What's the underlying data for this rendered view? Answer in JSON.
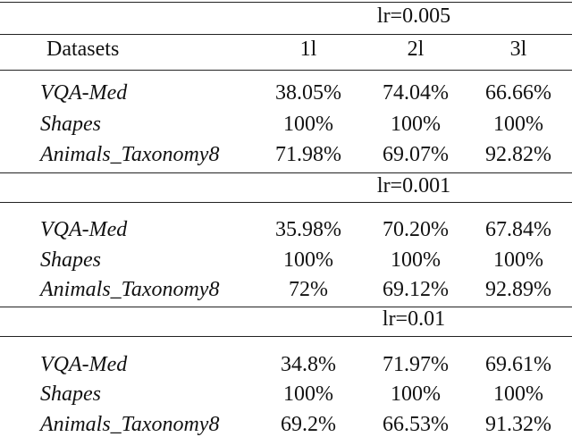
{
  "table": {
    "columns": [
      "Datasets",
      "1l",
      "2l",
      "3l"
    ],
    "sections": [
      {
        "label": "lr=0.005",
        "rows": [
          [
            "VQA-Med",
            "38.05%",
            "74.04%",
            "66.66%"
          ],
          [
            "Shapes",
            "100%",
            "100%",
            "100%"
          ],
          [
            "Animals_Taxonomy8",
            "71.98%",
            "69.07%",
            "92.82%"
          ]
        ]
      },
      {
        "label": "lr=0.001",
        "rows": [
          [
            "VQA-Med",
            "35.98%",
            "70.20%",
            "67.84%"
          ],
          [
            "Shapes",
            "100%",
            "100%",
            "100%"
          ],
          [
            "Animals_Taxonomy8",
            "72%",
            "69.12%",
            "92.89%"
          ]
        ]
      },
      {
        "label": "lr=0.01",
        "rows": [
          [
            "VQA-Med",
            "34.8%",
            "71.97%",
            "69.61%"
          ],
          [
            "Shapes",
            "100%",
            "100%",
            "100%"
          ],
          [
            "Animals_Taxonomy8",
            "69.2%",
            "66.53%",
            "91.32%"
          ]
        ]
      }
    ]
  }
}
